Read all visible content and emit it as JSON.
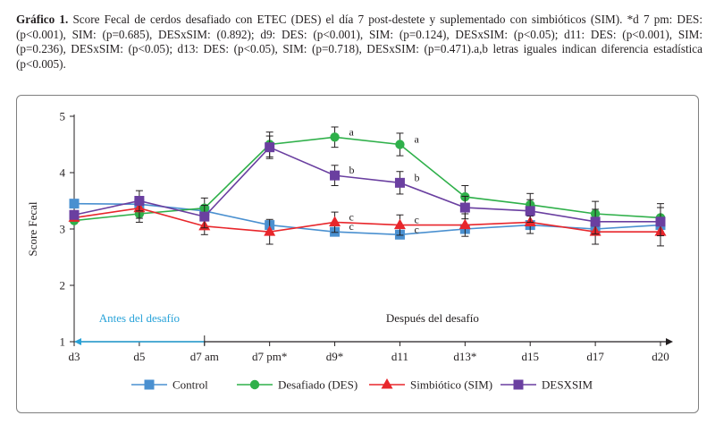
{
  "caption": {
    "label": "Gráfico 1.",
    "text": " Score Fecal de cerdos desafiado con ETEC (DES) el día 7 post-destete y suplementado con simbióticos (SIM). *d 7 pm: DES: (p<0.001), SIM: (p=0.685), DESxSIM: (0.892); d9: DES: (p<0.001), SIM: (p=0.124), DESxSIM: (p<0.05); d11: DES: (p<0.001), SIM: (p=0.236), DESxSIM: (p<0.05); d13: DES: (p<0.05), SIM: (p=0.718), DESxSIM: (p=0.471).a,b letras iguales indican diferencia estadística (p<0.005)."
  },
  "chart_data": {
    "type": "line",
    "title": "",
    "xlabel": "",
    "ylabel": "Score Fecal",
    "categories": [
      "d3",
      "d5",
      "d7 am",
      "d7 pm*",
      "d9*",
      "d11",
      "d13*",
      "d15",
      "d17",
      "d20"
    ],
    "ylim": [
      1,
      5
    ],
    "yticks": [
      1,
      2,
      3,
      4,
      5
    ],
    "grid": false,
    "legend_position": "bottom",
    "series": [
      {
        "name": "Control",
        "color": "#4a90d0",
        "marker": "square",
        "values": [
          3.45,
          3.44,
          3.32,
          3.07,
          2.95,
          2.9,
          3.0,
          3.07,
          3.0,
          3.07
        ],
        "errors": [
          0,
          0,
          0,
          0,
          0,
          0,
          0,
          0,
          0,
          0
        ]
      },
      {
        "name": "Desafiado (DES)",
        "color": "#2fb04a",
        "marker": "circle",
        "values": [
          3.15,
          3.27,
          3.37,
          4.5,
          4.63,
          4.5,
          3.57,
          3.43,
          3.27,
          3.2
        ],
        "errors": [
          0,
          0.15,
          0.18,
          0.22,
          0.18,
          0.2,
          0.2,
          0.2,
          0.22,
          0.25
        ]
      },
      {
        "name": "Simbiótico (SIM)",
        "color": "#e8262b",
        "marker": "triangle",
        "values": [
          3.2,
          3.37,
          3.05,
          2.95,
          3.12,
          3.07,
          3.07,
          3.12,
          2.95,
          2.95
        ],
        "errors": [
          0,
          0.18,
          0.15,
          0.22,
          0.18,
          0.18,
          0.2,
          0.2,
          0.22,
          0.25
        ]
      },
      {
        "name": "DESXSIM",
        "color": "#6a3fa0",
        "marker": "square",
        "values": [
          3.25,
          3.5,
          3.22,
          4.45,
          3.95,
          3.82,
          3.38,
          3.32,
          3.13,
          3.13
        ],
        "errors": [
          0,
          0.18,
          0.2,
          0.2,
          0.18,
          0.2,
          0.2,
          0.2,
          0.22,
          0.25
        ]
      }
    ],
    "annotations": {
      "points": [
        {
          "category": "d9*",
          "value": 4.63,
          "label": "a"
        },
        {
          "category": "d9*",
          "value": 3.95,
          "label": "b"
        },
        {
          "category": "d9*",
          "value": 3.12,
          "label": "c"
        },
        {
          "category": "d9*",
          "value": 2.95,
          "label": "c"
        },
        {
          "category": "d11",
          "value": 4.5,
          "label": "a"
        },
        {
          "category": "d11",
          "value": 3.82,
          "label": "b"
        },
        {
          "category": "d11",
          "value": 3.07,
          "label": "c"
        },
        {
          "category": "d11",
          "value": 2.9,
          "label": "c"
        }
      ],
      "before_label": "Antes del desafío",
      "after_label": "Después del desafío"
    }
  }
}
